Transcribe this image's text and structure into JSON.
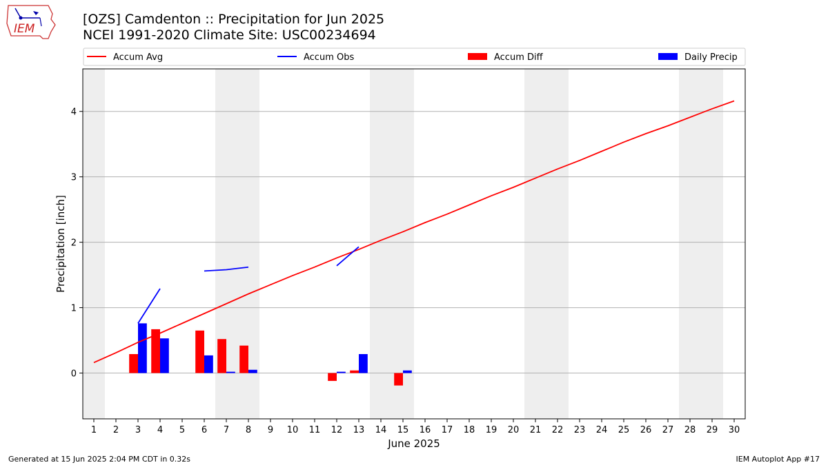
{
  "header": {
    "title": "[OZS] Camdenton :: Precipitation for Jun 2025",
    "subtitle": "NCEI 1991-2020 Climate Site: USC00234694"
  },
  "logo": {
    "text": "IEM",
    "icon": "iem-iowa-logo"
  },
  "footer": {
    "left": "Generated at 15 Jun 2025 2:04 PM CDT in 0.32s",
    "right": "IEM Autoplot App #17"
  },
  "chart_data": {
    "type": "bar",
    "xlabel": "June 2025",
    "ylabel": "Precipitation [inch]",
    "xlim": [
      0.5,
      30.5
    ],
    "ylim": [
      -0.7,
      4.65
    ],
    "x_ticks": [
      "1",
      "2",
      "3",
      "4",
      "5",
      "6",
      "7",
      "8",
      "9",
      "10",
      "11",
      "12",
      "13",
      "14",
      "15",
      "16",
      "17",
      "18",
      "19",
      "20",
      "21",
      "22",
      "23",
      "24",
      "25",
      "26",
      "27",
      "28",
      "29",
      "30"
    ],
    "y_ticks": [
      0,
      1,
      2,
      3,
      4
    ],
    "grid": "horizontal",
    "weekend_shading": [
      [
        0.5,
        1.5
      ],
      [
        6.5,
        8.5
      ],
      [
        13.5,
        15.5
      ],
      [
        20.5,
        22.5
      ],
      [
        27.5,
        29.5
      ]
    ],
    "legend": {
      "position": "top",
      "entries": [
        {
          "label": "Accum Avg",
          "kind": "line",
          "color": "#ff0000"
        },
        {
          "label": "Accum Obs",
          "kind": "line",
          "color": "#0000ff"
        },
        {
          "label": "Accum Diff",
          "kind": "bar",
          "color": "#ff0000"
        },
        {
          "label": "Daily Precip",
          "kind": "bar",
          "color": "#0000ff"
        }
      ]
    },
    "series": [
      {
        "name": "Accum Avg",
        "type": "line",
        "color": "#ff0000",
        "x": [
          1,
          2,
          3,
          4,
          5,
          6,
          7,
          8,
          9,
          10,
          11,
          12,
          13,
          14,
          15,
          16,
          17,
          18,
          19,
          20,
          21,
          22,
          23,
          24,
          25,
          26,
          27,
          28,
          29,
          30
        ],
        "values": [
          0.16,
          0.31,
          0.47,
          0.61,
          0.76,
          0.91,
          1.06,
          1.21,
          1.35,
          1.49,
          1.62,
          1.76,
          1.89,
          2.03,
          2.16,
          2.3,
          2.43,
          2.57,
          2.71,
          2.84,
          2.98,
          3.12,
          3.25,
          3.39,
          3.53,
          3.66,
          3.78,
          3.91,
          4.04,
          4.16
        ]
      },
      {
        "name": "Accum Obs",
        "type": "line",
        "color": "#0000ff",
        "segments": [
          {
            "x": [
              3,
              4
            ],
            "values": [
              0.76,
              1.29
            ]
          },
          {
            "x": [
              6,
              7,
              8
            ],
            "values": [
              1.56,
              1.58,
              1.62
            ]
          },
          {
            "x": [
              12,
              13
            ],
            "values": [
              1.64,
              1.93
            ]
          }
        ]
      },
      {
        "name": "Accum Diff",
        "type": "bar",
        "color": "#ff0000",
        "x": [
          3,
          4,
          6,
          7,
          8,
          12,
          13,
          15
        ],
        "values": [
          0.29,
          0.67,
          0.65,
          0.52,
          0.42,
          -0.12,
          0.04,
          -0.19
        ]
      },
      {
        "name": "Daily Precip",
        "type": "bar",
        "color": "#0000ff",
        "x": [
          3,
          4,
          6,
          7,
          8,
          12,
          13,
          15
        ],
        "values": [
          0.76,
          0.53,
          0.27,
          0.02,
          0.05,
          0.02,
          0.29,
          0.04
        ]
      }
    ]
  }
}
